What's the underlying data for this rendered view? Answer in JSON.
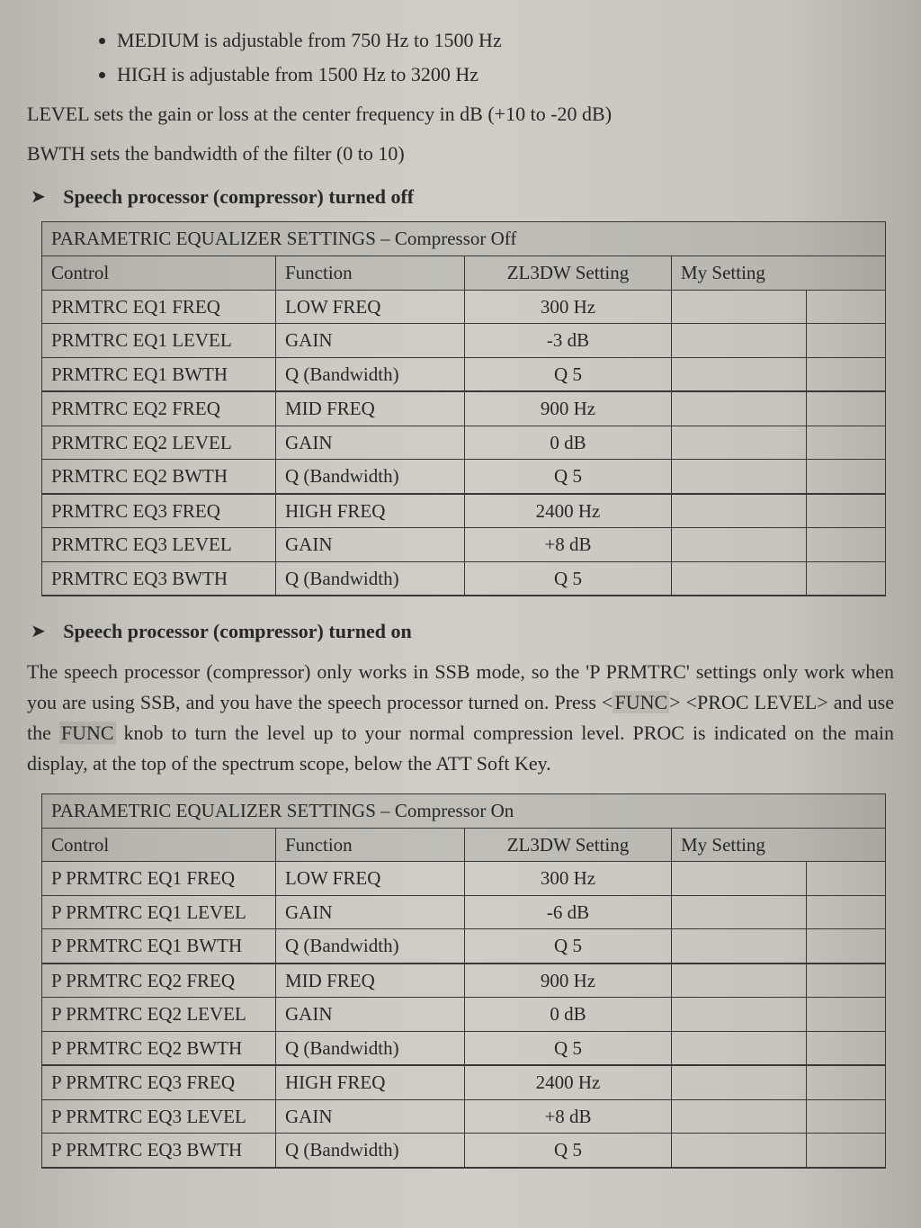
{
  "bullets": [
    "MEDIUM is adjustable from 750 Hz to 1500 Hz",
    "HIGH is adjustable from 1500 Hz to 3200 Hz"
  ],
  "level_line": "LEVEL sets the gain or loss at the center frequency in dB (+10 to -20 dB)",
  "bwth_line": "BWTH sets the bandwidth of the filter (0 to 10)",
  "section_off": "Speech processor (compressor) turned off",
  "table_off": {
    "title": "PARAMETRIC EQUALIZER SETTINGS – Compressor Off",
    "columns": [
      "Control",
      "Function",
      "ZL3DW Setting",
      "My Setting"
    ],
    "rows": [
      [
        "PRMTRC EQ1 FREQ",
        "LOW FREQ",
        "300 Hz",
        ""
      ],
      [
        "PRMTRC EQ1 LEVEL",
        "GAIN",
        "-3 dB",
        ""
      ],
      [
        "PRMTRC EQ1 BWTH",
        "Q (Bandwidth)",
        "Q 5",
        ""
      ],
      [
        "PRMTRC EQ2 FREQ",
        "MID FREQ",
        "900 Hz",
        ""
      ],
      [
        "PRMTRC EQ2 LEVEL",
        "GAIN",
        "0 dB",
        ""
      ],
      [
        "PRMTRC EQ2 BWTH",
        "Q (Bandwidth)",
        "Q 5",
        ""
      ],
      [
        "PRMTRC EQ3 FREQ",
        "HIGH FREQ",
        "2400 Hz",
        ""
      ],
      [
        "PRMTRC EQ3 LEVEL",
        "GAIN",
        "+8 dB",
        ""
      ],
      [
        "PRMTRC EQ3 BWTH",
        "Q (Bandwidth)",
        "Q 5",
        ""
      ]
    ]
  },
  "section_on": "Speech processor (compressor) turned on",
  "para_on_pre": "The speech processor (compressor) only works in SSB mode, so the 'P PRMTRC' settings only work when you are using SSB, and you have the speech processor turned on. Press <",
  "para_on_func": "FUNC",
  "para_on_mid1": "> <PROC LEVEL> and use the ",
  "para_on_func2": "FUNC",
  "para_on_post": " knob to turn the level up to your normal compression level. PROC is indicated on the main display, at the top of the spectrum scope, below the ATT Soft Key.",
  "table_on": {
    "title": "PARAMETRIC EQUALIZER SETTINGS – Compressor On",
    "columns": [
      "Control",
      "Function",
      "ZL3DW Setting",
      "My Setting"
    ],
    "rows": [
      [
        "P PRMTRC EQ1 FREQ",
        "LOW FREQ",
        "300 Hz",
        ""
      ],
      [
        "P PRMTRC EQ1 LEVEL",
        "GAIN",
        "-6 dB",
        ""
      ],
      [
        "P PRMTRC EQ1 BWTH",
        "Q (Bandwidth)",
        "Q 5",
        ""
      ],
      [
        "P PRMTRC EQ2 FREQ",
        "MID FREQ",
        "900 Hz",
        ""
      ],
      [
        "P PRMTRC EQ2 LEVEL",
        "GAIN",
        "0 dB",
        ""
      ],
      [
        "P PRMTRC EQ2 BWTH",
        "Q (Bandwidth)",
        "Q 5",
        ""
      ],
      [
        "P PRMTRC EQ3 FREQ",
        "HIGH FREQ",
        "2400 Hz",
        ""
      ],
      [
        "P PRMTRC EQ3 LEVEL",
        "GAIN",
        "+8 dB",
        ""
      ],
      [
        "P PRMTRC EQ3 BWTH",
        "Q (Bandwidth)",
        "Q 5",
        ""
      ]
    ]
  }
}
